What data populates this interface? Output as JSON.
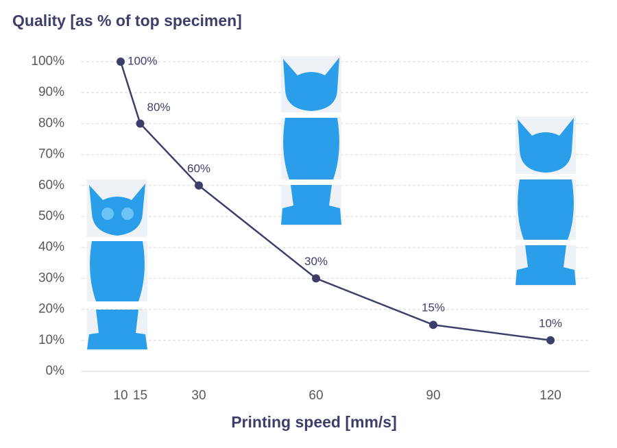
{
  "chart_data": {
    "type": "line",
    "title": "Quality [as % of top specimen]",
    "xlabel": "Printing speed [mm/s]",
    "x": [
      10,
      15,
      30,
      60,
      90,
      120
    ],
    "values": [
      100,
      80,
      60,
      30,
      15,
      10
    ],
    "value_labels": [
      "100%",
      "80%",
      "60%",
      "30%",
      "15%",
      "10%"
    ],
    "color": "#3d3f6b",
    "xlim": [
      0,
      130
    ],
    "xticks": [
      10,
      15,
      30,
      60,
      90,
      120
    ],
    "ylim": [
      0,
      100
    ],
    "yticks": [
      {
        "value": 0,
        "label": "0%"
      },
      {
        "value": 10,
        "label": "10%"
      },
      {
        "value": 20,
        "label": "20%"
      },
      {
        "value": 30,
        "label": "30%"
      },
      {
        "value": 40,
        "label": "40%"
      },
      {
        "value": 50,
        "label": "50%"
      },
      {
        "value": 60,
        "label": "60%"
      },
      {
        "value": 70,
        "label": "70%"
      },
      {
        "value": 80,
        "label": "80%"
      },
      {
        "value": 90,
        "label": "90%"
      },
      {
        "value": 100,
        "label": "100%"
      }
    ],
    "grid": true
  }
}
